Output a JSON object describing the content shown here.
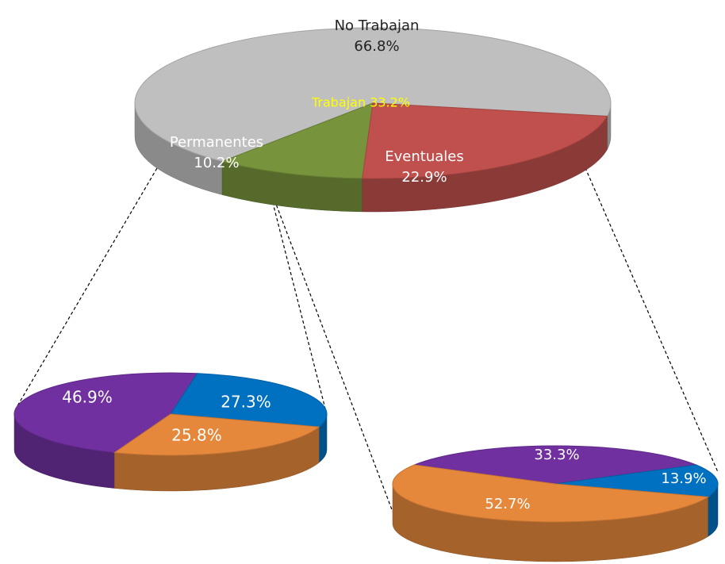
{
  "chart_data": [
    {
      "type": "pie",
      "categories": [
        "No Trabajan",
        "Permanentes",
        "Eventuales"
      ],
      "values": [
        66.8,
        10.2,
        22.9
      ],
      "value_labels": [
        "66.8%",
        "10.2%",
        "22.9%"
      ],
      "colors": [
        "#bfbfbf",
        "#77933c",
        "#c0504d"
      ],
      "annotations": [
        "Trabajan 33.2%"
      ]
    },
    {
      "type": "pie",
      "values": [
        46.9,
        27.3,
        25.8
      ],
      "value_labels": [
        "46.9%",
        "27.3%",
        "25.8%"
      ],
      "colors": [
        "#7030a0",
        "#0070c0",
        "#e6883c"
      ]
    },
    {
      "type": "pie",
      "values": [
        33.3,
        13.9,
        52.7
      ],
      "value_labels": [
        "33.3%",
        "13.9%",
        "52.7%"
      ],
      "colors": [
        "#7030a0",
        "#0070c0",
        "#e6883c"
      ]
    }
  ]
}
